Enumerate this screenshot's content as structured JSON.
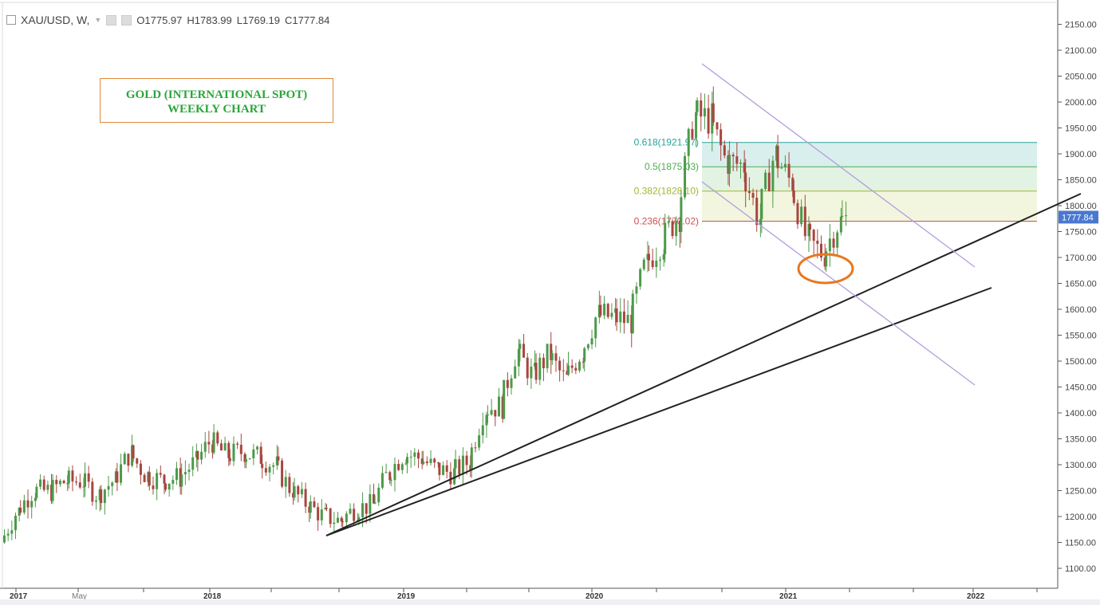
{
  "header": {
    "symbol": "XAU/USD, W,",
    "open": "O1775.97",
    "high": "H1783.99",
    "low": "L1769.19",
    "close": "C1777.84"
  },
  "annotation": {
    "line1": "GOLD (INTERNATIONAL SPOT)",
    "line2": "WEEKLY CHART"
  },
  "colors": {
    "up": "#4c9a4a",
    "down": "#a8453f",
    "accent": "#4a78d0",
    "fib": [
      "#26a69a",
      "#4caf50",
      "#a4b62d",
      "#d05050"
    ],
    "channel": "#b39ddb",
    "circle": "#e8771e"
  },
  "chart_data": {
    "type": "candlestick",
    "title": "XAU/USD, W",
    "ylim": [
      1100,
      2150
    ],
    "y_ticks": [
      "2150.00",
      "2100.00",
      "2050.00",
      "2000.00",
      "1950.00",
      "1900.00",
      "1850.00",
      "1800.00",
      "1750.00",
      "1700.00",
      "1650.00",
      "1600.00",
      "1550.00",
      "1500.00",
      "1450.00",
      "1400.00",
      "1350.00",
      "1300.00",
      "1250.00",
      "1200.00",
      "1150.00",
      "1100.00"
    ],
    "x_ticks": [
      "2017",
      "May",
      "2018",
      "2019",
      "2020",
      "2021",
      "2022"
    ],
    "last_price": "1777.84",
    "monthly_closes_from_dec_2016": [
      1150,
      1210,
      1250,
      1249,
      1268,
      1268,
      1242,
      1269,
      1322,
      1280,
      1270,
      1275,
      1303,
      1345,
      1318,
      1325,
      1315,
      1298,
      1252,
      1224,
      1201,
      1192,
      1215,
      1222,
      1282,
      1321,
      1313,
      1292,
      1284,
      1305,
      1409,
      1413,
      1520,
      1472,
      1512,
      1464,
      1517,
      1589,
      1585,
      1577,
      1686,
      1730,
      1781,
      1975,
      1967,
      1886,
      1878,
      1776,
      1898,
      1847,
      1734,
      1707,
      1769,
      1778
    ],
    "fibonacci": [
      {
        "label": "0.618(1921.97)",
        "value": 1921.97
      },
      {
        "label": "0.5(1875.03)",
        "value": 1875.03
      },
      {
        "label": "0.382(1828.10)",
        "value": 1828.1
      },
      {
        "label": "0.236(1770.02)",
        "value": 1770.02
      }
    ]
  }
}
